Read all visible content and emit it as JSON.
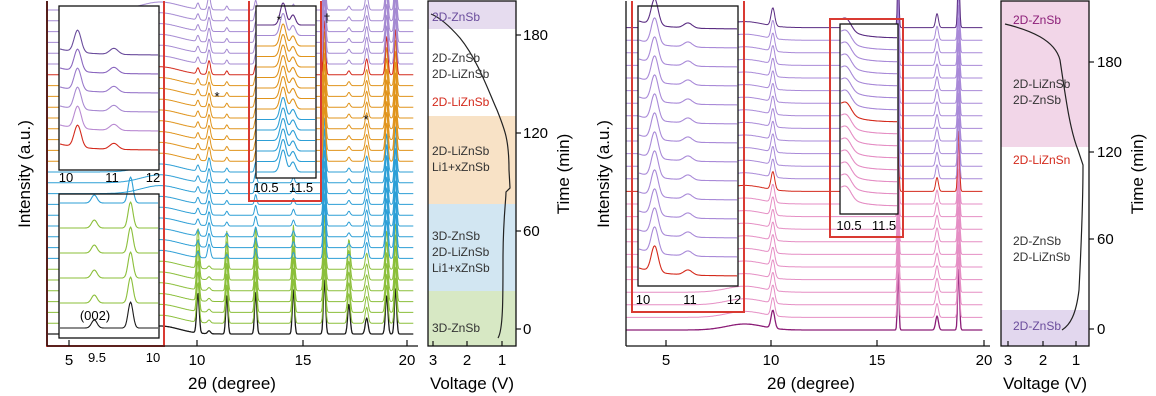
{
  "chart_data": [
    {
      "type": "line",
      "subtype": "stacked waterfall XRD patterns",
      "xlabel": "2θ (degree)",
      "ylabel": "Intensity (a.u.)",
      "xlim": [
        3.5,
        20
      ],
      "xticks": [
        "5",
        "10",
        "15",
        "20"
      ],
      "peaks_2theta": [
        10.3,
        10.8,
        11.6,
        12.9,
        14.6,
        16.0,
        17.1,
        17.9,
        18.8,
        19.2
      ],
      "markers": [
        {
          "symbol": "*",
          "x": 10.8
        },
        {
          "symbol": "*",
          "x": 17.9
        },
        {
          "symbol": "*",
          "x": 11.05
        },
        {
          "symbol": "†",
          "x": 16.0
        }
      ],
      "series_color_groups": [
        {
          "phase": "3D-ZnSb",
          "color": "#1a1a1a",
          "count": 1
        },
        {
          "phase": "3D-ZnSb",
          "color": "#8bbf3a",
          "count": 6
        },
        {
          "phase": "3D-ZnSb / 2D-LiZnSb / Li1+xZnSb",
          "color": "#2d9fd6",
          "count": 9
        },
        {
          "phase": "2D-LiZnSb / Li1+xZnSb",
          "color": "#e0941c",
          "count": 8
        },
        {
          "phase": "2D-LiZnSb",
          "color": "#d42a1c",
          "count": 1
        },
        {
          "phase": "2D-ZnSb / 2D-LiZnSb",
          "color": "#a58ad2",
          "count": 6
        },
        {
          "phase": "2D-ZnSb",
          "color": "#5a2c82",
          "count": 1
        }
      ],
      "insets": [
        {
          "xticks": [
            "10",
            "11",
            "12"
          ]
        },
        {
          "xticks": [
            "9.5",
            "10"
          ],
          "label": "(002)"
        },
        {
          "xticks": [
            "10.5",
            "11.5"
          ]
        }
      ]
    },
    {
      "type": "line",
      "subtype": "voltage profile",
      "xlabel": "Voltage (V)",
      "ylabel": "Time (min)",
      "xticks": [
        "3",
        "2",
        "1"
      ],
      "yticks": [
        "0",
        "60",
        "120",
        "180"
      ],
      "regions": [
        {
          "label": "3D-ZnSb",
          "color": "#d7e8c4"
        },
        {
          "label": "3D-ZnSb",
          "label2": "2D-LiZnSb",
          "label3": "Li1+xZnSb",
          "color": "#d2e6f2"
        },
        {
          "label": "2D-LiZnSb",
          "label2": "Li1+xZnSb",
          "color": "#f8e2c6"
        },
        {
          "label": "2D-LiZnSb",
          "color": "#ffffff",
          "text_color": "#d42a1c"
        },
        {
          "label": "2D-ZnSb",
          "label2": "2D-LiZnSb",
          "color": "#ffffff"
        },
        {
          "label": "2D-ZnSb",
          "color": "#e6dcef",
          "text_color": "#6a4c9c"
        }
      ]
    },
    {
      "type": "line",
      "subtype": "stacked waterfall XRD patterns",
      "xlabel": "2θ (degree)",
      "ylabel": "Intensity (a.u.)",
      "xlim": [
        3.5,
        20
      ],
      "xticks": [
        "5",
        "10",
        "15",
        "20"
      ],
      "peaks_2theta": [
        10.3,
        16.1,
        17.9,
        18.9
      ],
      "series_color_groups": [
        {
          "phase": "2D-ZnSb",
          "color": "#8c1e78",
          "count": 1
        },
        {
          "phase": "2D-ZnSb / 2D-LiZnSb",
          "color": "#e58ec4",
          "count": 10
        },
        {
          "phase": "2D-LiZnSb",
          "color": "#d42a1c",
          "count": 1
        },
        {
          "phase": "2D-LiZnSb / 2D-ZnSb",
          "color": "#a98ad8",
          "count": 12
        },
        {
          "phase": "2D-ZnSb",
          "color": "#5a2c82",
          "count": 1
        }
      ],
      "insets": [
        {
          "xticks": [
            "10",
            "11",
            "12"
          ]
        },
        {
          "xticks": [
            "10.5",
            "11.5"
          ]
        }
      ]
    },
    {
      "type": "line",
      "subtype": "voltage profile",
      "xlabel": "Voltage (V)",
      "ylabel": "Time (min)",
      "xticks": [
        "3",
        "2",
        "1"
      ],
      "yticks": [
        "0",
        "60",
        "120",
        "180"
      ],
      "regions": [
        {
          "label": "2D-ZnSb",
          "color": "#f2d6e8",
          "text_color": "#8c1e78"
        },
        {
          "label": "2D-ZnSb",
          "label2": "2D-LiZnSb",
          "color": "#f2d6e8"
        },
        {
          "label": "2D-LiZnSn",
          "color": "#ffffff",
          "text_color": "#d42a1c"
        },
        {
          "label": "2D-LiZnSb",
          "label2": "2D-ZnSb",
          "color": "#ffffff"
        },
        {
          "label": "2D-ZnSb",
          "color": "#e2d7ee",
          "text_color": "#6a4c9c"
        }
      ]
    }
  ]
}
